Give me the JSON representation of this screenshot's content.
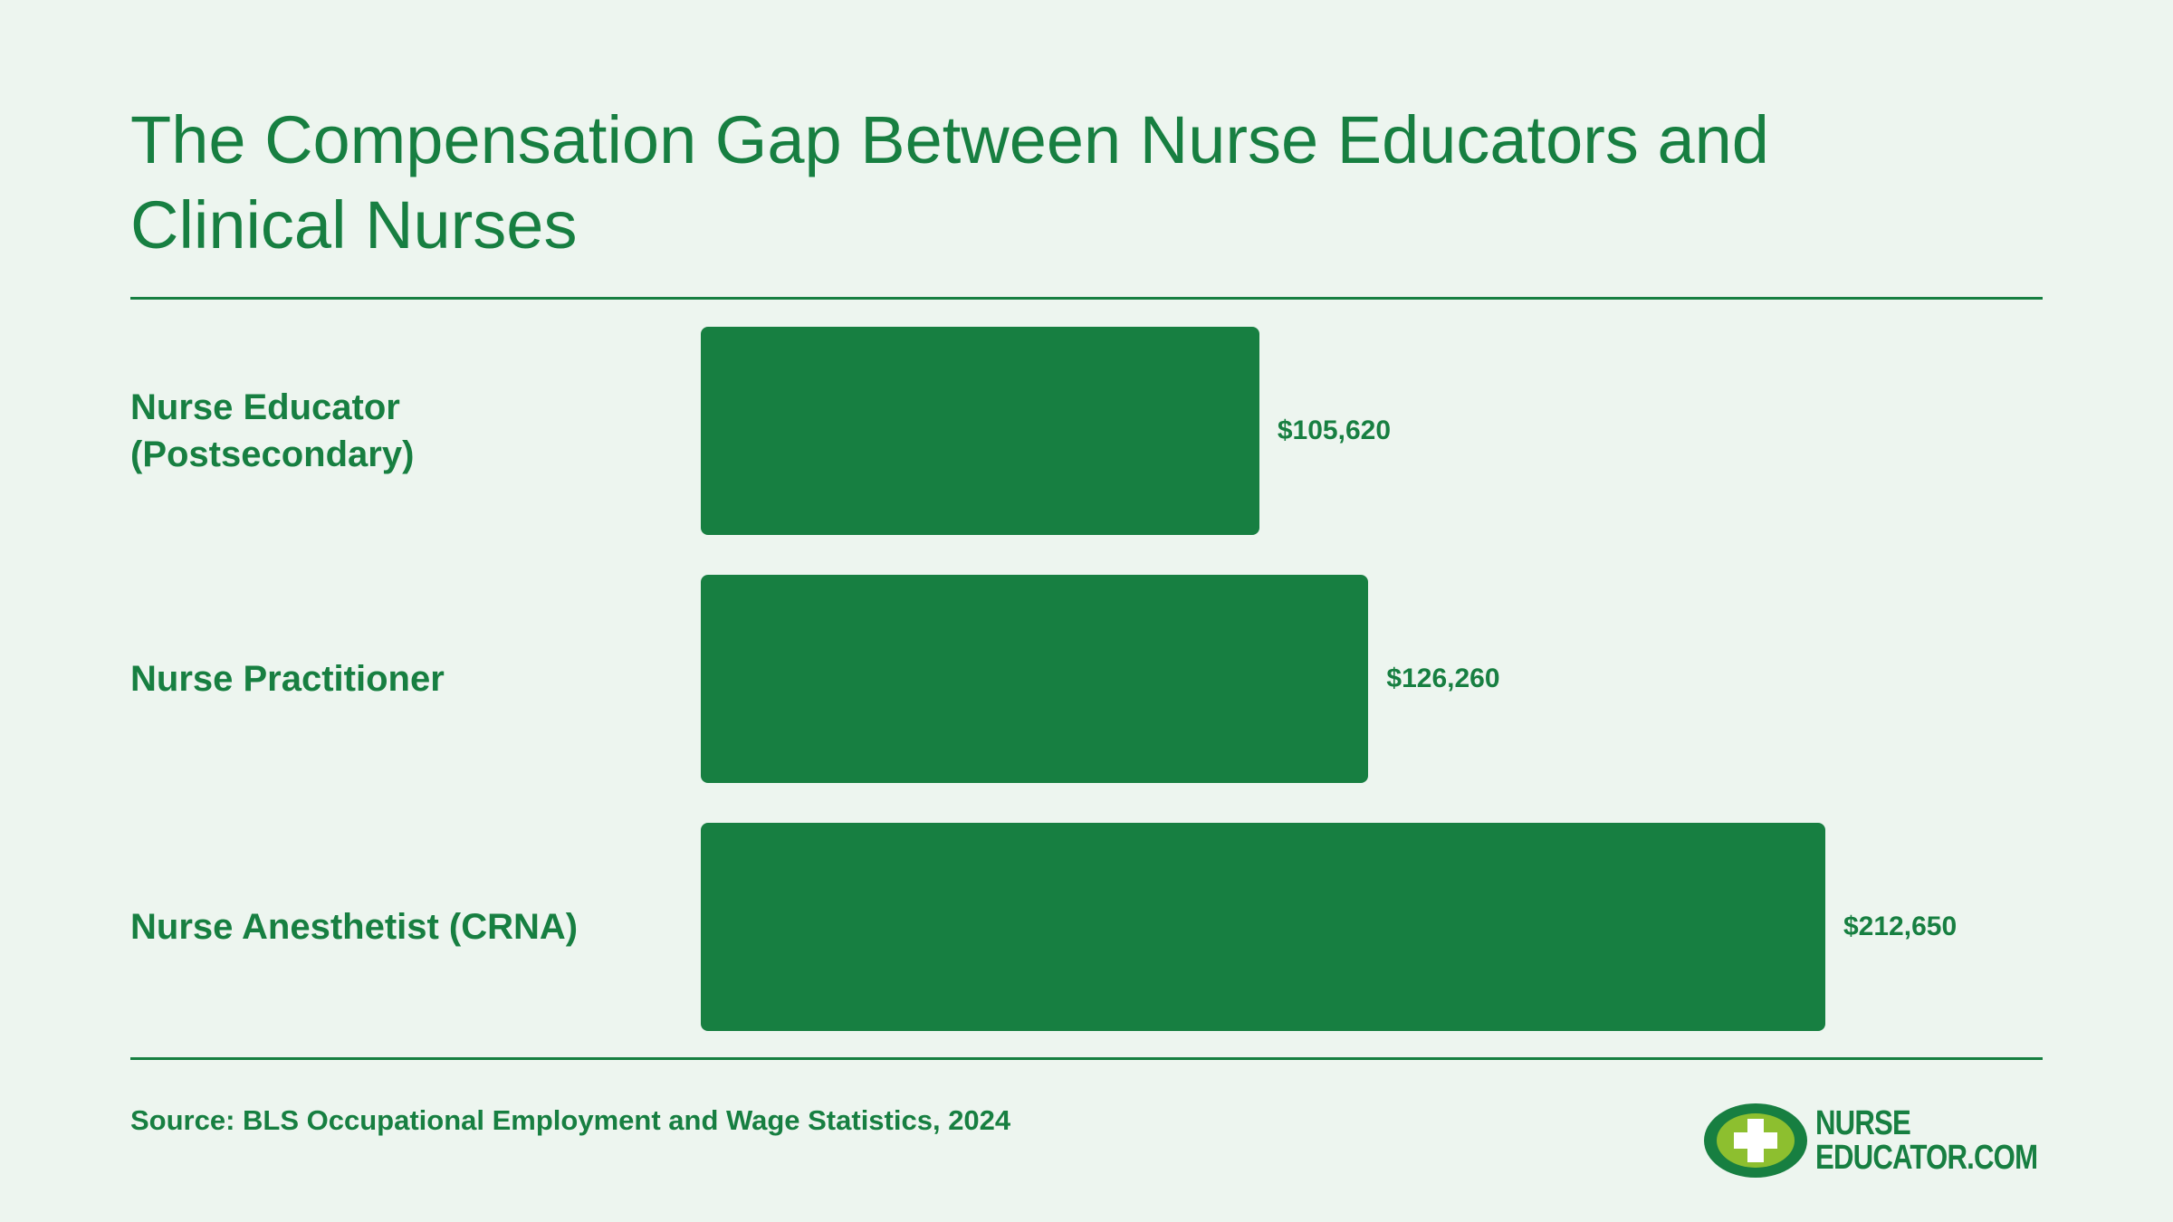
{
  "chart_data": {
    "type": "bar",
    "orientation": "horizontal",
    "title": "The Compensation Gap Between Nurse Educators and Clinical Nurses",
    "categories": [
      "Nurse Educator (Postsecondary)",
      "Nurse Practitioner",
      "Nurse Anesthetist (CRNA)"
    ],
    "values": [
      105620,
      126260,
      212650
    ],
    "value_labels": [
      "$105,620",
      "$126,260",
      "$212,650"
    ],
    "color": "#177f41"
  },
  "source": "Source: BLS Occupational Employment and Wage Statistics, 2024",
  "logo": {
    "line1": "NURSE",
    "line2": "EDUCATOR.COM"
  }
}
